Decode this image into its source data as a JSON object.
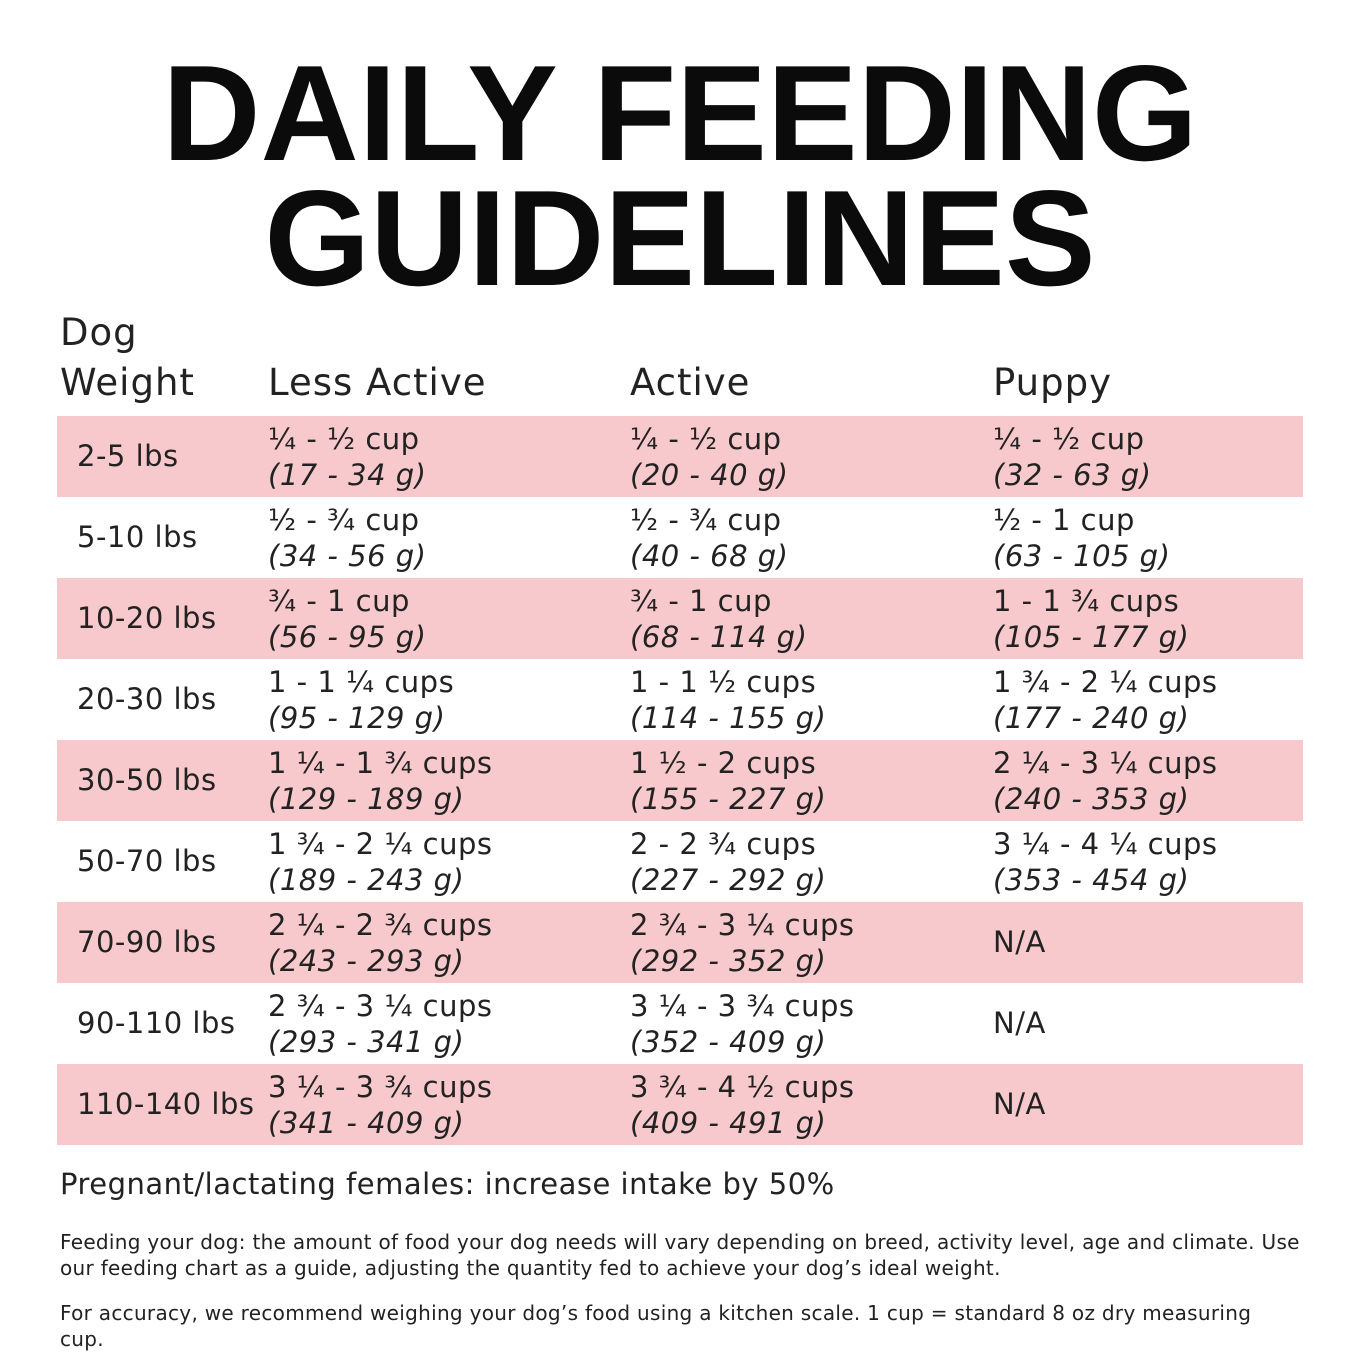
{
  "header": {
    "title_lines": [
      "DAILY FEEDING",
      "GUIDELINES"
    ]
  },
  "table": {
    "columns": [
      [
        "Dog",
        "Weight"
      ],
      "Less Active",
      "Active",
      "Puppy"
    ],
    "rows": [
      {
        "weight": "2-5 lbs",
        "cells": [
          {
            "amount": "¼ - ½ cup",
            "grams": "(17 - 34 g)"
          },
          {
            "amount": "¼ - ½ cup",
            "grams": "(20 - 40 g)"
          },
          {
            "amount": "¼ - ½ cup",
            "grams": "(32 - 63 g)"
          }
        ]
      },
      {
        "weight": "5-10 lbs",
        "cells": [
          {
            "amount": "½ - ¾ cup",
            "grams": "(34 - 56 g)"
          },
          {
            "amount": "½ - ¾ cup",
            "grams": "(40 - 68 g)"
          },
          {
            "amount": "½ - 1 cup",
            "grams": "(63 - 105 g)"
          }
        ]
      },
      {
        "weight": "10-20 lbs",
        "cells": [
          {
            "amount": "¾ - 1 cup",
            "grams": "(56 - 95 g)"
          },
          {
            "amount": "¾ - 1 cup",
            "grams": "(68 - 114 g)"
          },
          {
            "amount": "1 - 1 ¾ cups",
            "grams": "(105 - 177 g)"
          }
        ]
      },
      {
        "weight": "20-30 lbs",
        "cells": [
          {
            "amount": "1 - 1 ¼ cups",
            "grams": "(95 - 129 g)"
          },
          {
            "amount": "1 - 1 ½ cups",
            "grams": "(114 - 155 g)"
          },
          {
            "amount": "1 ¾ - 2 ¼ cups",
            "grams": "(177 - 240 g)"
          }
        ]
      },
      {
        "weight": "30-50 lbs",
        "cells": [
          {
            "amount": "1 ¼ - 1 ¾ cups",
            "grams": "(129 - 189 g)"
          },
          {
            "amount": "1 ½ - 2 cups",
            "grams": "(155 - 227 g)"
          },
          {
            "amount": "2 ¼ - 3 ¼ cups",
            "grams": "(240 - 353 g)"
          }
        ]
      },
      {
        "weight": "50-70 lbs",
        "cells": [
          {
            "amount": "1 ¾ - 2 ¼ cups",
            "grams": "(189 - 243 g)"
          },
          {
            "amount": "2 - 2 ¾ cups",
            "grams": "(227 - 292 g)"
          },
          {
            "amount": "3 ¼ - 4 ¼ cups",
            "grams": "(353 - 454 g)"
          }
        ]
      },
      {
        "weight": "70-90 lbs",
        "cells": [
          {
            "amount": "2 ¼ - 2 ¾ cups",
            "grams": "(243 - 293 g)"
          },
          {
            "amount": "2 ¾ - 3 ¼ cups",
            "grams": "(292 - 352 g)"
          },
          {
            "amount": "N/A"
          }
        ]
      },
      {
        "weight": "90-110 lbs",
        "cells": [
          {
            "amount": "2 ¾ - 3 ¼ cups",
            "grams": "(293 - 341 g)"
          },
          {
            "amount": "3 ¼ - 3 ¾ cups",
            "grams": "(352 - 409 g)"
          },
          {
            "amount": "N/A"
          }
        ]
      },
      {
        "weight": "110-140 lbs",
        "cells": [
          {
            "amount": "3 ¼ - 3 ¾ cups",
            "grams": "(341 - 409 g)"
          },
          {
            "amount": "3 ¾ - 4 ½ cups",
            "grams": "(409 - 491 g)"
          },
          {
            "amount": "N/A"
          }
        ]
      }
    ]
  },
  "notes": {
    "highlight": "Pregnant/lactating females: increase intake by 50%",
    "paragraphs": [
      "Feeding your dog: the amount of food your dog needs will vary depending on breed, activity level, age and climate. Use our feeding chart as a guide, adjusting the quantity fed to achieve your dog’s ideal weight.",
      "For accuracy, we recommend weighing your dog’s food using a kitchen scale. 1 cup = standard 8 oz dry measuring cup."
    ]
  }
}
